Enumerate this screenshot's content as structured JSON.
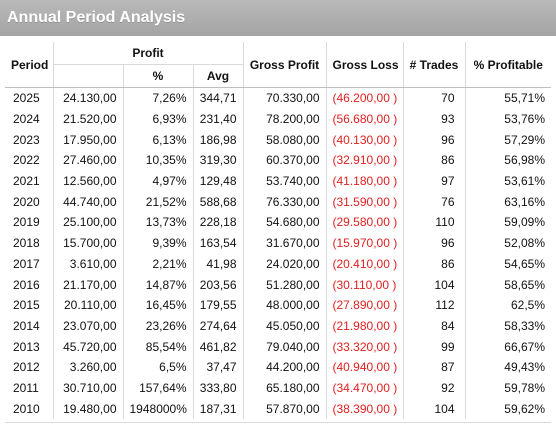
{
  "title": "Annual Period Analysis",
  "headers": {
    "period": "Period",
    "profit_group": "Profit",
    "pct": "%",
    "avg": "Avg",
    "gross_profit": "Gross Profit",
    "gross_loss": "Gross Loss",
    "trades": "# Trades",
    "pct_profitable": "% Profitable"
  },
  "colors": {
    "loss": "#e02020",
    "title_bar": "#a9a9a9"
  },
  "rows": [
    {
      "period": "2025",
      "profit": "24.130,00",
      "pct": "7,26%",
      "avg": "344,71",
      "gross_profit": "70.330,00",
      "gross_loss": "(46.200,00 )",
      "trades": "70",
      "pct_profitable": "55,71%"
    },
    {
      "period": "2024",
      "profit": "21.520,00",
      "pct": "6,93%",
      "avg": "231,40",
      "gross_profit": "78.200,00",
      "gross_loss": "(56.680,00 )",
      "trades": "93",
      "pct_profitable": "53,76%"
    },
    {
      "period": "2023",
      "profit": "17.950,00",
      "pct": "6,13%",
      "avg": "186,98",
      "gross_profit": "58.080,00",
      "gross_loss": "(40.130,00 )",
      "trades": "96",
      "pct_profitable": "57,29%"
    },
    {
      "period": "2022",
      "profit": "27.460,00",
      "pct": "10,35%",
      "avg": "319,30",
      "gross_profit": "60.370,00",
      "gross_loss": "(32.910,00 )",
      "trades": "86",
      "pct_profitable": "56,98%"
    },
    {
      "period": "2021",
      "profit": "12.560,00",
      "pct": "4,97%",
      "avg": "129,48",
      "gross_profit": "53.740,00",
      "gross_loss": "(41.180,00 )",
      "trades": "97",
      "pct_profitable": "53,61%"
    },
    {
      "period": "2020",
      "profit": "44.740,00",
      "pct": "21,52%",
      "avg": "588,68",
      "gross_profit": "76.330,00",
      "gross_loss": "(31.590,00 )",
      "trades": "76",
      "pct_profitable": "63,16%"
    },
    {
      "period": "2019",
      "profit": "25.100,00",
      "pct": "13,73%",
      "avg": "228,18",
      "gross_profit": "54.680,00",
      "gross_loss": "(29.580,00 )",
      "trades": "110",
      "pct_profitable": "59,09%"
    },
    {
      "period": "2018",
      "profit": "15.700,00",
      "pct": "9,39%",
      "avg": "163,54",
      "gross_profit": "31.670,00",
      "gross_loss": "(15.970,00 )",
      "trades": "96",
      "pct_profitable": "52,08%"
    },
    {
      "period": "2017",
      "profit": "3.610,00",
      "pct": "2,21%",
      "avg": "41,98",
      "gross_profit": "24.020,00",
      "gross_loss": "(20.410,00 )",
      "trades": "86",
      "pct_profitable": "54,65%"
    },
    {
      "period": "2016",
      "profit": "21.170,00",
      "pct": "14,87%",
      "avg": "203,56",
      "gross_profit": "51.280,00",
      "gross_loss": "(30.110,00 )",
      "trades": "104",
      "pct_profitable": "58,65%"
    },
    {
      "period": "2015",
      "profit": "20.110,00",
      "pct": "16,45%",
      "avg": "179,55",
      "gross_profit": "48.000,00",
      "gross_loss": "(27.890,00 )",
      "trades": "112",
      "pct_profitable": "62,5%"
    },
    {
      "period": "2014",
      "profit": "23.070,00",
      "pct": "23,26%",
      "avg": "274,64",
      "gross_profit": "45.050,00",
      "gross_loss": "(21.980,00 )",
      "trades": "84",
      "pct_profitable": "58,33%"
    },
    {
      "period": "2013",
      "profit": "45.720,00",
      "pct": "85,54%",
      "avg": "461,82",
      "gross_profit": "79.040,00",
      "gross_loss": "(33.320,00 )",
      "trades": "99",
      "pct_profitable": "66,67%"
    },
    {
      "period": "2012",
      "profit": "3.260,00",
      "pct": "6,5%",
      "avg": "37,47",
      "gross_profit": "44.200,00",
      "gross_loss": "(40.940,00 )",
      "trades": "87",
      "pct_profitable": "49,43%"
    },
    {
      "period": "2011",
      "profit": "30.710,00",
      "pct": "157,64%",
      "avg": "333,80",
      "gross_profit": "65.180,00",
      "gross_loss": "(34.470,00 )",
      "trades": "92",
      "pct_profitable": "59,78%"
    },
    {
      "period": "2010",
      "profit": "19.480,00",
      "pct": "1948000%",
      "avg": "187,31",
      "gross_profit": "57.870,00",
      "gross_loss": "(38.390,00 )",
      "trades": "104",
      "pct_profitable": "59,62%"
    }
  ]
}
